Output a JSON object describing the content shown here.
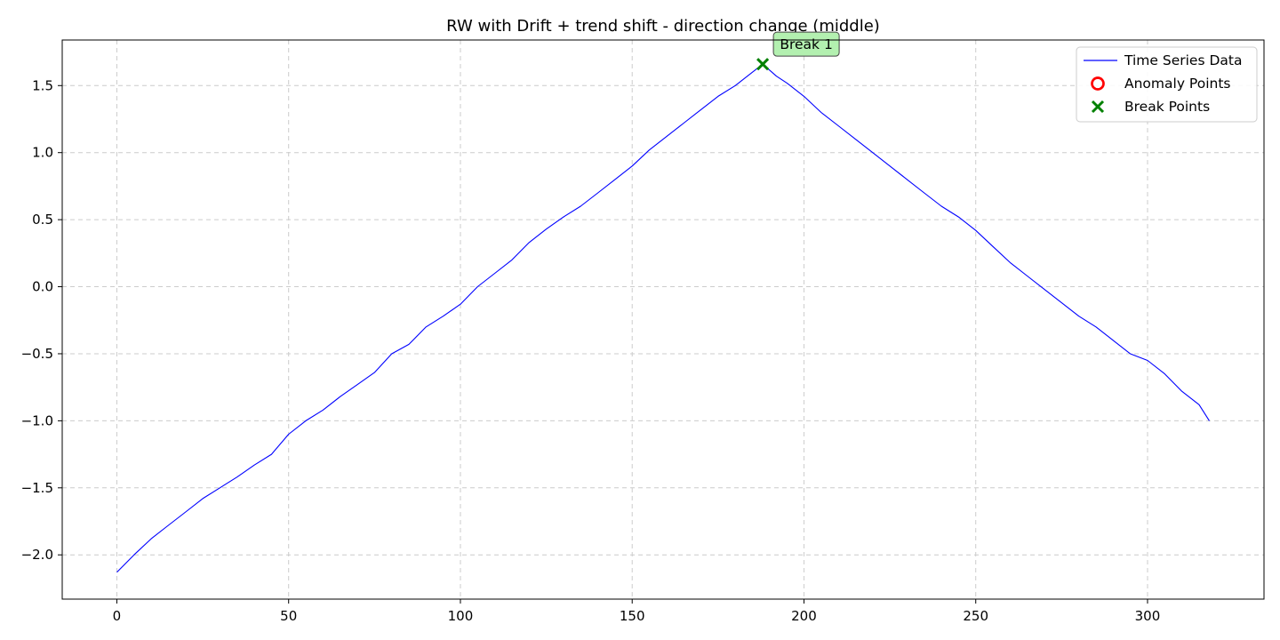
{
  "chart_data": {
    "type": "line",
    "title": "RW with Drift + trend shift - direction change (middle)",
    "xlabel": "",
    "ylabel": "",
    "xlim": [
      -15.9,
      333.9
    ],
    "ylim": [
      -2.33,
      1.84
    ],
    "xticks": [
      0,
      50,
      100,
      150,
      200,
      250,
      300
    ],
    "yticks": [
      -2.0,
      -1.5,
      -1.0,
      -0.5,
      0.0,
      0.5,
      1.0,
      1.5
    ],
    "xtick_labels": [
      "0",
      "50",
      "100",
      "150",
      "200",
      "250",
      "300"
    ],
    "ytick_labels": [
      "−2.0",
      "−1.5",
      "−1.0",
      "−0.5",
      "0.0",
      "0.5",
      "1.0",
      "1.5"
    ],
    "grid": true,
    "legend_position": "top-right",
    "series": [
      {
        "name": "Time Series Data",
        "color": "#0000ff",
        "x": [
          0,
          5,
          10,
          15,
          20,
          25,
          30,
          35,
          40,
          45,
          50,
          55,
          60,
          65,
          70,
          75,
          80,
          85,
          90,
          95,
          100,
          105,
          110,
          115,
          120,
          125,
          130,
          135,
          140,
          145,
          150,
          155,
          160,
          165,
          170,
          175,
          180,
          185,
          188,
          192,
          195,
          200,
          205,
          210,
          215,
          220,
          225,
          230,
          235,
          240,
          245,
          250,
          255,
          260,
          265,
          270,
          275,
          280,
          285,
          290,
          295,
          300,
          305,
          310,
          315,
          318
        ],
        "y": [
          -2.13,
          -2.0,
          -1.88,
          -1.78,
          -1.68,
          -1.58,
          -1.5,
          -1.42,
          -1.33,
          -1.25,
          -1.1,
          -1.0,
          -0.92,
          -0.82,
          -0.73,
          -0.64,
          -0.5,
          -0.43,
          -0.3,
          -0.22,
          -0.13,
          0.0,
          0.1,
          0.2,
          0.33,
          0.43,
          0.52,
          0.6,
          0.7,
          0.8,
          0.9,
          1.02,
          1.12,
          1.22,
          1.32,
          1.42,
          1.5,
          1.6,
          1.66,
          1.57,
          1.52,
          1.42,
          1.3,
          1.2,
          1.1,
          1.0,
          0.9,
          0.8,
          0.7,
          0.6,
          0.52,
          0.42,
          0.3,
          0.18,
          0.08,
          -0.02,
          -0.12,
          -0.22,
          -0.3,
          -0.4,
          -0.5,
          -0.55,
          -0.65,
          -0.78,
          -0.88,
          -1.0
        ]
      }
    ],
    "anomaly_points": {
      "name": "Anomaly Points",
      "color": "#ff0000",
      "x": [],
      "y": []
    },
    "break_points": {
      "name": "Break Points",
      "color": "#008000",
      "x": [
        188
      ],
      "y": [
        1.66
      ],
      "labels": [
        "Break 1"
      ]
    }
  }
}
